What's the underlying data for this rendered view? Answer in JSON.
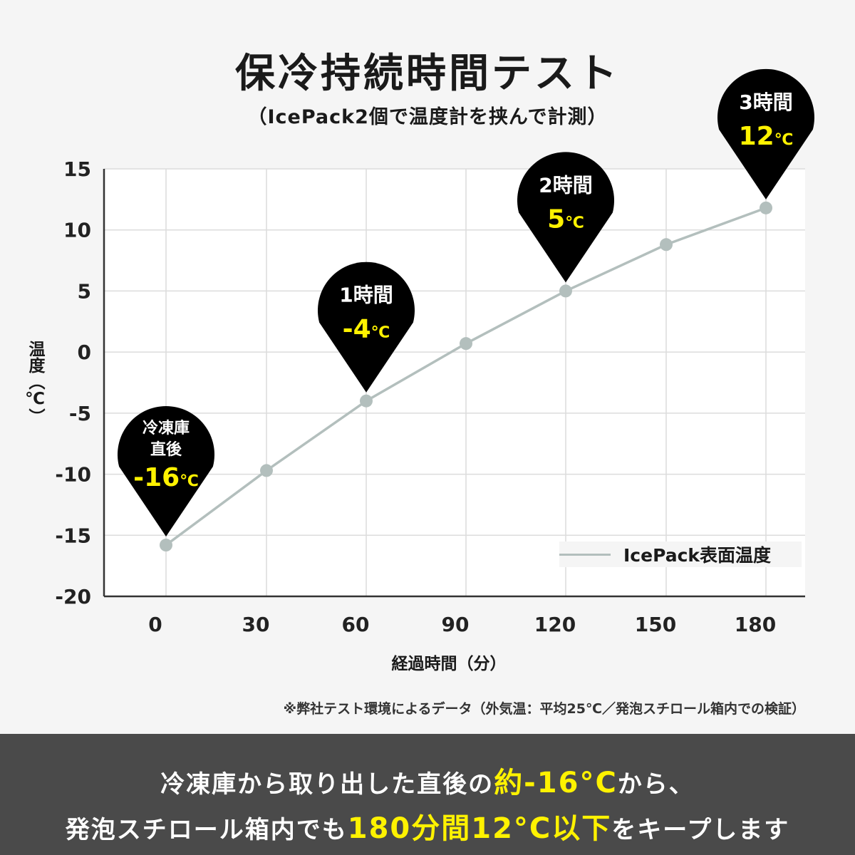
{
  "title": "保冷持続時間テスト",
  "subtitle": "（IcePack2個で温度計を挟んで計測）",
  "note": "※弊社テスト環境によるデータ（外気温：平均25℃／発泡スチロール箱内での検証）",
  "footer": {
    "line1_a": "冷凍庫から取り出した直後の",
    "line1_hl": "約-16°C",
    "line1_b": "から、",
    "line2_a": "発泡スチロール箱内でも",
    "line2_hl": "180分間12°C以下",
    "line2_b": "をキープします"
  },
  "colors": {
    "line": "#b3bfbd",
    "pin": "#000000",
    "highlight": "#fff200",
    "footer_bg": "#4a4a4a"
  },
  "chart_data": {
    "type": "line",
    "title": "保冷持続時間テスト",
    "xlabel": "経過時間（分）",
    "ylabel": "温度（℃）",
    "x": [
      0,
      30,
      60,
      90,
      120,
      150,
      180
    ],
    "x_ticks": [
      "0",
      "30",
      "60",
      "90",
      "120",
      "150",
      "180"
    ],
    "y_ticks": [
      "15",
      "10",
      "5",
      "0",
      "-5",
      "-10",
      "-15",
      "-20"
    ],
    "ylim": [
      -20,
      15
    ],
    "grid": true,
    "legend": "bottom-right",
    "series": [
      {
        "name": "IcePack表面温度",
        "values": [
          -15.8,
          -9.7,
          -4,
          0.7,
          5,
          8.8,
          11.8
        ]
      }
    ],
    "annotations": [
      {
        "x": 0,
        "y": -15.8,
        "label_top": "冷凍庫",
        "label_mid": "直後",
        "value": "-16",
        "unit": "℃"
      },
      {
        "x": 60,
        "y": -4,
        "label_top": "1時間",
        "value": "-4",
        "unit": "℃"
      },
      {
        "x": 120,
        "y": 5,
        "label_top": "2時間",
        "value": "5",
        "unit": "℃"
      },
      {
        "x": 180,
        "y": 11.8,
        "label_top": "3時間",
        "value": "12",
        "unit": "℃"
      }
    ]
  }
}
